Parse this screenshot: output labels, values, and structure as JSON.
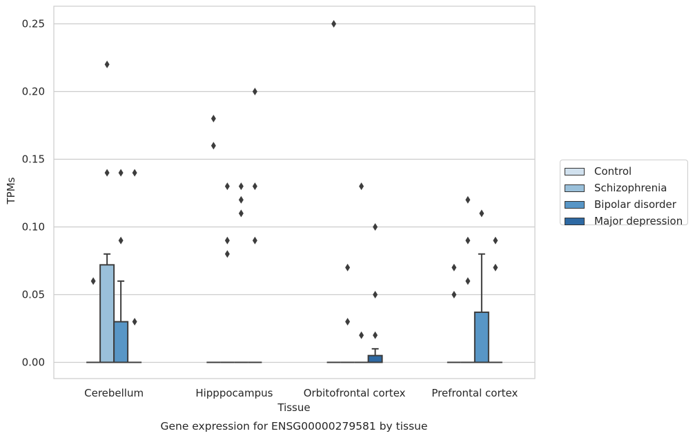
{
  "chart_data": {
    "type": "boxplot",
    "title": "Gene expression for ENSG00000279581 by tissue",
    "xlabel": "Tissue",
    "ylabel": "TPMs",
    "ylim": [
      -0.012,
      0.263
    ],
    "yticks": [
      "0.00",
      "0.05",
      "0.10",
      "0.15",
      "0.20",
      "0.25"
    ],
    "ytick_values": [
      0,
      0.05,
      0.1,
      0.15,
      0.2,
      0.25
    ],
    "grid": "horizontal",
    "legend_position": "right",
    "categories": [
      "Cerebellum",
      "Hipppocampus",
      "Orbitofrontal cortex",
      "Prefrontal cortex"
    ],
    "series": [
      {
        "name": "Control",
        "color": "#d1e1ee",
        "boxes": [
          {
            "q1": 0,
            "median": 0,
            "q3": 0,
            "whisker_low": 0,
            "whisker_high": 0,
            "outliers": [
              0.06
            ]
          },
          {
            "q1": 0,
            "median": 0,
            "q3": 0,
            "whisker_low": 0,
            "whisker_high": 0,
            "outliers": [
              0.18,
              0.16
            ]
          },
          {
            "q1": 0,
            "median": 0,
            "q3": 0,
            "whisker_low": 0,
            "whisker_high": 0,
            "outliers": [
              0.25
            ]
          },
          {
            "q1": 0,
            "median": 0,
            "q3": 0,
            "whisker_low": 0,
            "whisker_high": 0,
            "outliers": [
              0.07,
              0.05
            ]
          }
        ]
      },
      {
        "name": "Schizophrenia",
        "color": "#9ac0da",
        "boxes": [
          {
            "q1": 0,
            "median": 0,
            "q3": 0.072,
            "whisker_low": 0,
            "whisker_high": 0.08,
            "outliers": [
              0.22,
              0.14
            ]
          },
          {
            "q1": 0,
            "median": 0,
            "q3": 0,
            "whisker_low": 0,
            "whisker_high": 0,
            "outliers": [
              0.13,
              0.09,
              0.08
            ]
          },
          {
            "q1": 0,
            "median": 0,
            "q3": 0,
            "whisker_low": 0,
            "whisker_high": 0,
            "outliers": [
              0.07,
              0.03
            ]
          },
          {
            "q1": 0,
            "median": 0,
            "q3": 0,
            "whisker_low": 0,
            "whisker_high": 0,
            "outliers": [
              0.12,
              0.09,
              0.06
            ]
          }
        ]
      },
      {
        "name": "Bipolar disorder",
        "color": "#5896c6",
        "boxes": [
          {
            "q1": 0,
            "median": 0,
            "q3": 0.03,
            "whisker_low": 0,
            "whisker_high": 0.06,
            "outliers": [
              0.14,
              0.09
            ]
          },
          {
            "q1": 0,
            "median": 0,
            "q3": 0,
            "whisker_low": 0,
            "whisker_high": 0,
            "outliers": [
              0.13,
              0.12,
              0.11
            ]
          },
          {
            "q1": 0,
            "median": 0,
            "q3": 0,
            "whisker_low": 0,
            "whisker_high": 0,
            "outliers": [
              0.13,
              0.02
            ]
          },
          {
            "q1": 0,
            "median": 0,
            "q3": 0.037,
            "whisker_low": 0,
            "whisker_high": 0.08,
            "outliers": [
              0.11
            ]
          }
        ]
      },
      {
        "name": "Major depression",
        "color": "#2e69a3",
        "boxes": [
          {
            "q1": 0,
            "median": 0,
            "q3": 0,
            "whisker_low": 0,
            "whisker_high": 0,
            "outliers": [
              0.14,
              0.03
            ]
          },
          {
            "q1": 0,
            "median": 0,
            "q3": 0,
            "whisker_low": 0,
            "whisker_high": 0,
            "outliers": [
              0.2,
              0.13,
              0.09
            ]
          },
          {
            "q1": 0,
            "median": 0,
            "q3": 0.005,
            "whisker_low": 0,
            "whisker_high": 0.01,
            "outliers": [
              0.1,
              0.05,
              0.02
            ]
          },
          {
            "q1": 0,
            "median": 0,
            "q3": 0,
            "whisker_low": 0,
            "whisker_high": 0,
            "outliers": [
              0.09,
              0.07
            ]
          }
        ]
      }
    ]
  }
}
